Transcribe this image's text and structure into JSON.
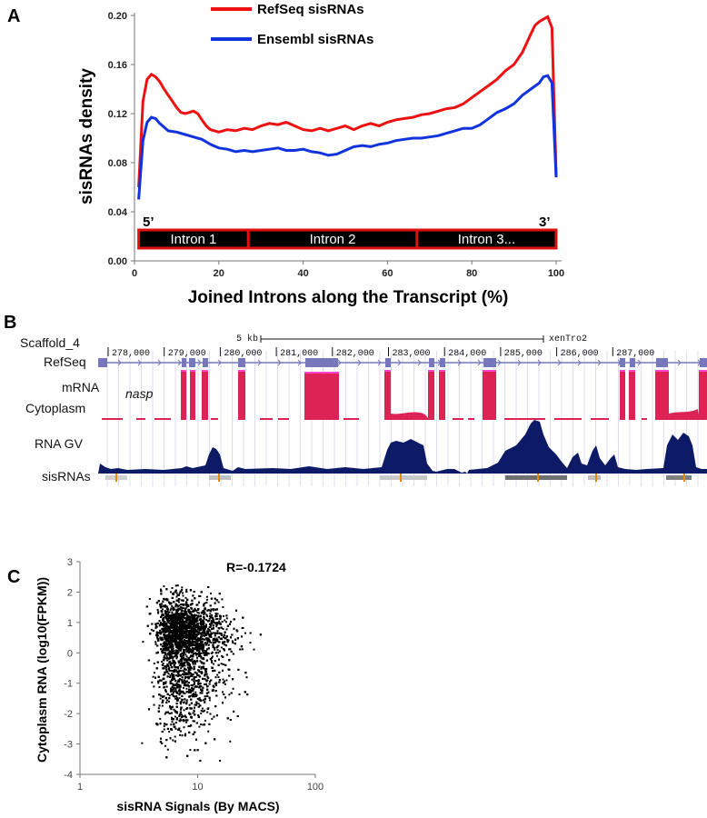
{
  "panels": {
    "a": "A",
    "b": "B",
    "c": "C"
  },
  "chart_data": [
    {
      "panel": "A",
      "type": "line",
      "xlabel": "Joined Introns along the Transcript (%)",
      "ylabel": "sisRNAs density",
      "xlim": [
        0,
        100
      ],
      "ylim": [
        0,
        0.2
      ],
      "xticks": [
        "0",
        "20",
        "40",
        "60",
        "80",
        "100"
      ],
      "yticks": [
        "0.00",
        "0.04",
        "0.08",
        "0.12",
        "0.16",
        "0.20"
      ],
      "legend_position": "top-center",
      "series": [
        {
          "name": "RefSeq sisRNAs",
          "color": "#ee1111",
          "points": [
            [
              1,
              0.06
            ],
            [
              2,
              0.13
            ],
            [
              3,
              0.148
            ],
            [
              4,
              0.152
            ],
            [
              5,
              0.15
            ],
            [
              6,
              0.146
            ],
            [
              7,
              0.14
            ],
            [
              8,
              0.135
            ],
            [
              9,
              0.13
            ],
            [
              10,
              0.125
            ],
            [
              11,
              0.121
            ],
            [
              12,
              0.12
            ],
            [
              13,
              0.121
            ],
            [
              14,
              0.122
            ],
            [
              15,
              0.12
            ],
            [
              16,
              0.115
            ],
            [
              17,
              0.11
            ],
            [
              18,
              0.107
            ],
            [
              20,
              0.105
            ],
            [
              22,
              0.107
            ],
            [
              24,
              0.106
            ],
            [
              26,
              0.108
            ],
            [
              28,
              0.107
            ],
            [
              30,
              0.11
            ],
            [
              32,
              0.112
            ],
            [
              34,
              0.111
            ],
            [
              36,
              0.113
            ],
            [
              38,
              0.11
            ],
            [
              40,
              0.107
            ],
            [
              42,
              0.106
            ],
            [
              44,
              0.108
            ],
            [
              46,
              0.106
            ],
            [
              48,
              0.108
            ],
            [
              50,
              0.11
            ],
            [
              52,
              0.107
            ],
            [
              54,
              0.11
            ],
            [
              56,
              0.112
            ],
            [
              58,
              0.11
            ],
            [
              60,
              0.113
            ],
            [
              62,
              0.115
            ],
            [
              64,
              0.116
            ],
            [
              66,
              0.117
            ],
            [
              68,
              0.119
            ],
            [
              70,
              0.12
            ],
            [
              72,
              0.122
            ],
            [
              74,
              0.124
            ],
            [
              76,
              0.125
            ],
            [
              78,
              0.128
            ],
            [
              80,
              0.133
            ],
            [
              82,
              0.138
            ],
            [
              84,
              0.143
            ],
            [
              86,
              0.148
            ],
            [
              88,
              0.155
            ],
            [
              90,
              0.16
            ],
            [
              92,
              0.17
            ],
            [
              94,
              0.185
            ],
            [
              95,
              0.192
            ],
            [
              96,
              0.195
            ],
            [
              97,
              0.197
            ],
            [
              98,
              0.199
            ],
            [
              99,
              0.19
            ],
            [
              100,
              0.07
            ]
          ]
        },
        {
          "name": "Ensembl sisRNAs",
          "color": "#1133dd",
          "points": [
            [
              1,
              0.05
            ],
            [
              2,
              0.098
            ],
            [
              3,
              0.113
            ],
            [
              4,
              0.117
            ],
            [
              5,
              0.116
            ],
            [
              6,
              0.112
            ],
            [
              7,
              0.109
            ],
            [
              8,
              0.106
            ],
            [
              10,
              0.105
            ],
            [
              12,
              0.103
            ],
            [
              14,
              0.101
            ],
            [
              16,
              0.099
            ],
            [
              18,
              0.095
            ],
            [
              20,
              0.092
            ],
            [
              22,
              0.091
            ],
            [
              24,
              0.089
            ],
            [
              26,
              0.09
            ],
            [
              28,
              0.089
            ],
            [
              30,
              0.09
            ],
            [
              32,
              0.091
            ],
            [
              34,
              0.092
            ],
            [
              36,
              0.09
            ],
            [
              38,
              0.09
            ],
            [
              40,
              0.091
            ],
            [
              42,
              0.089
            ],
            [
              44,
              0.088
            ],
            [
              46,
              0.086
            ],
            [
              48,
              0.087
            ],
            [
              50,
              0.09
            ],
            [
              52,
              0.093
            ],
            [
              54,
              0.094
            ],
            [
              56,
              0.093
            ],
            [
              58,
              0.095
            ],
            [
              60,
              0.096
            ],
            [
              62,
              0.098
            ],
            [
              64,
              0.099
            ],
            [
              66,
              0.1
            ],
            [
              68,
              0.1
            ],
            [
              70,
              0.101
            ],
            [
              72,
              0.102
            ],
            [
              74,
              0.104
            ],
            [
              76,
              0.106
            ],
            [
              78,
              0.108
            ],
            [
              80,
              0.108
            ],
            [
              82,
              0.111
            ],
            [
              84,
              0.116
            ],
            [
              86,
              0.121
            ],
            [
              88,
              0.124
            ],
            [
              90,
              0.128
            ],
            [
              92,
              0.135
            ],
            [
              94,
              0.14
            ],
            [
              96,
              0.145
            ],
            [
              97,
              0.15
            ],
            [
              98,
              0.151
            ],
            [
              99,
              0.145
            ],
            [
              100,
              0.068
            ]
          ]
        }
      ],
      "annotations": {
        "five_prime": "5’",
        "three_prime": "3’",
        "introns": [
          {
            "label": "Intron 1",
            "start": 1,
            "end": 27
          },
          {
            "label": "Intron 2",
            "start": 27,
            "end": 67
          },
          {
            "label": "Intron 3...",
            "start": 67,
            "end": 100
          }
        ]
      }
    },
    {
      "panel": "B",
      "type": "genome-browser",
      "scale_label": "5 kb",
      "assembly": "xenTro2",
      "track_labels": [
        "Scaffold_4",
        "RefSeq",
        "mRNA",
        "Cytoplasm",
        "RNA GV",
        "sisRNAs"
      ],
      "gene_label": "nasp",
      "coordinates": [
        "278,000",
        "279,000",
        "280,000",
        "281,000",
        "282,000",
        "283,000",
        "284,000",
        "285,000",
        "286,000",
        "287,000"
      ],
      "colors": {
        "mrna": "#dd2255",
        "rna_gv": "#0d1a66",
        "refseq": "#7777bb"
      }
    },
    {
      "panel": "C",
      "type": "scatter",
      "xlabel": "sisRNA Signals (By MACS)",
      "ylabel": "Cytoplasm RNA (log10(FPKM))",
      "x_scale": "log",
      "xlim": [
        1,
        100
      ],
      "ylim": [
        -4,
        3
      ],
      "xticks": [
        "1",
        "10",
        "100"
      ],
      "yticks": [
        "-4",
        "-3",
        "-2",
        "-1",
        "0",
        "1",
        "2",
        "3"
      ],
      "correlation_label": "R=-0.1724",
      "points_description_n": 6000,
      "point_color": "#000000"
    }
  ]
}
